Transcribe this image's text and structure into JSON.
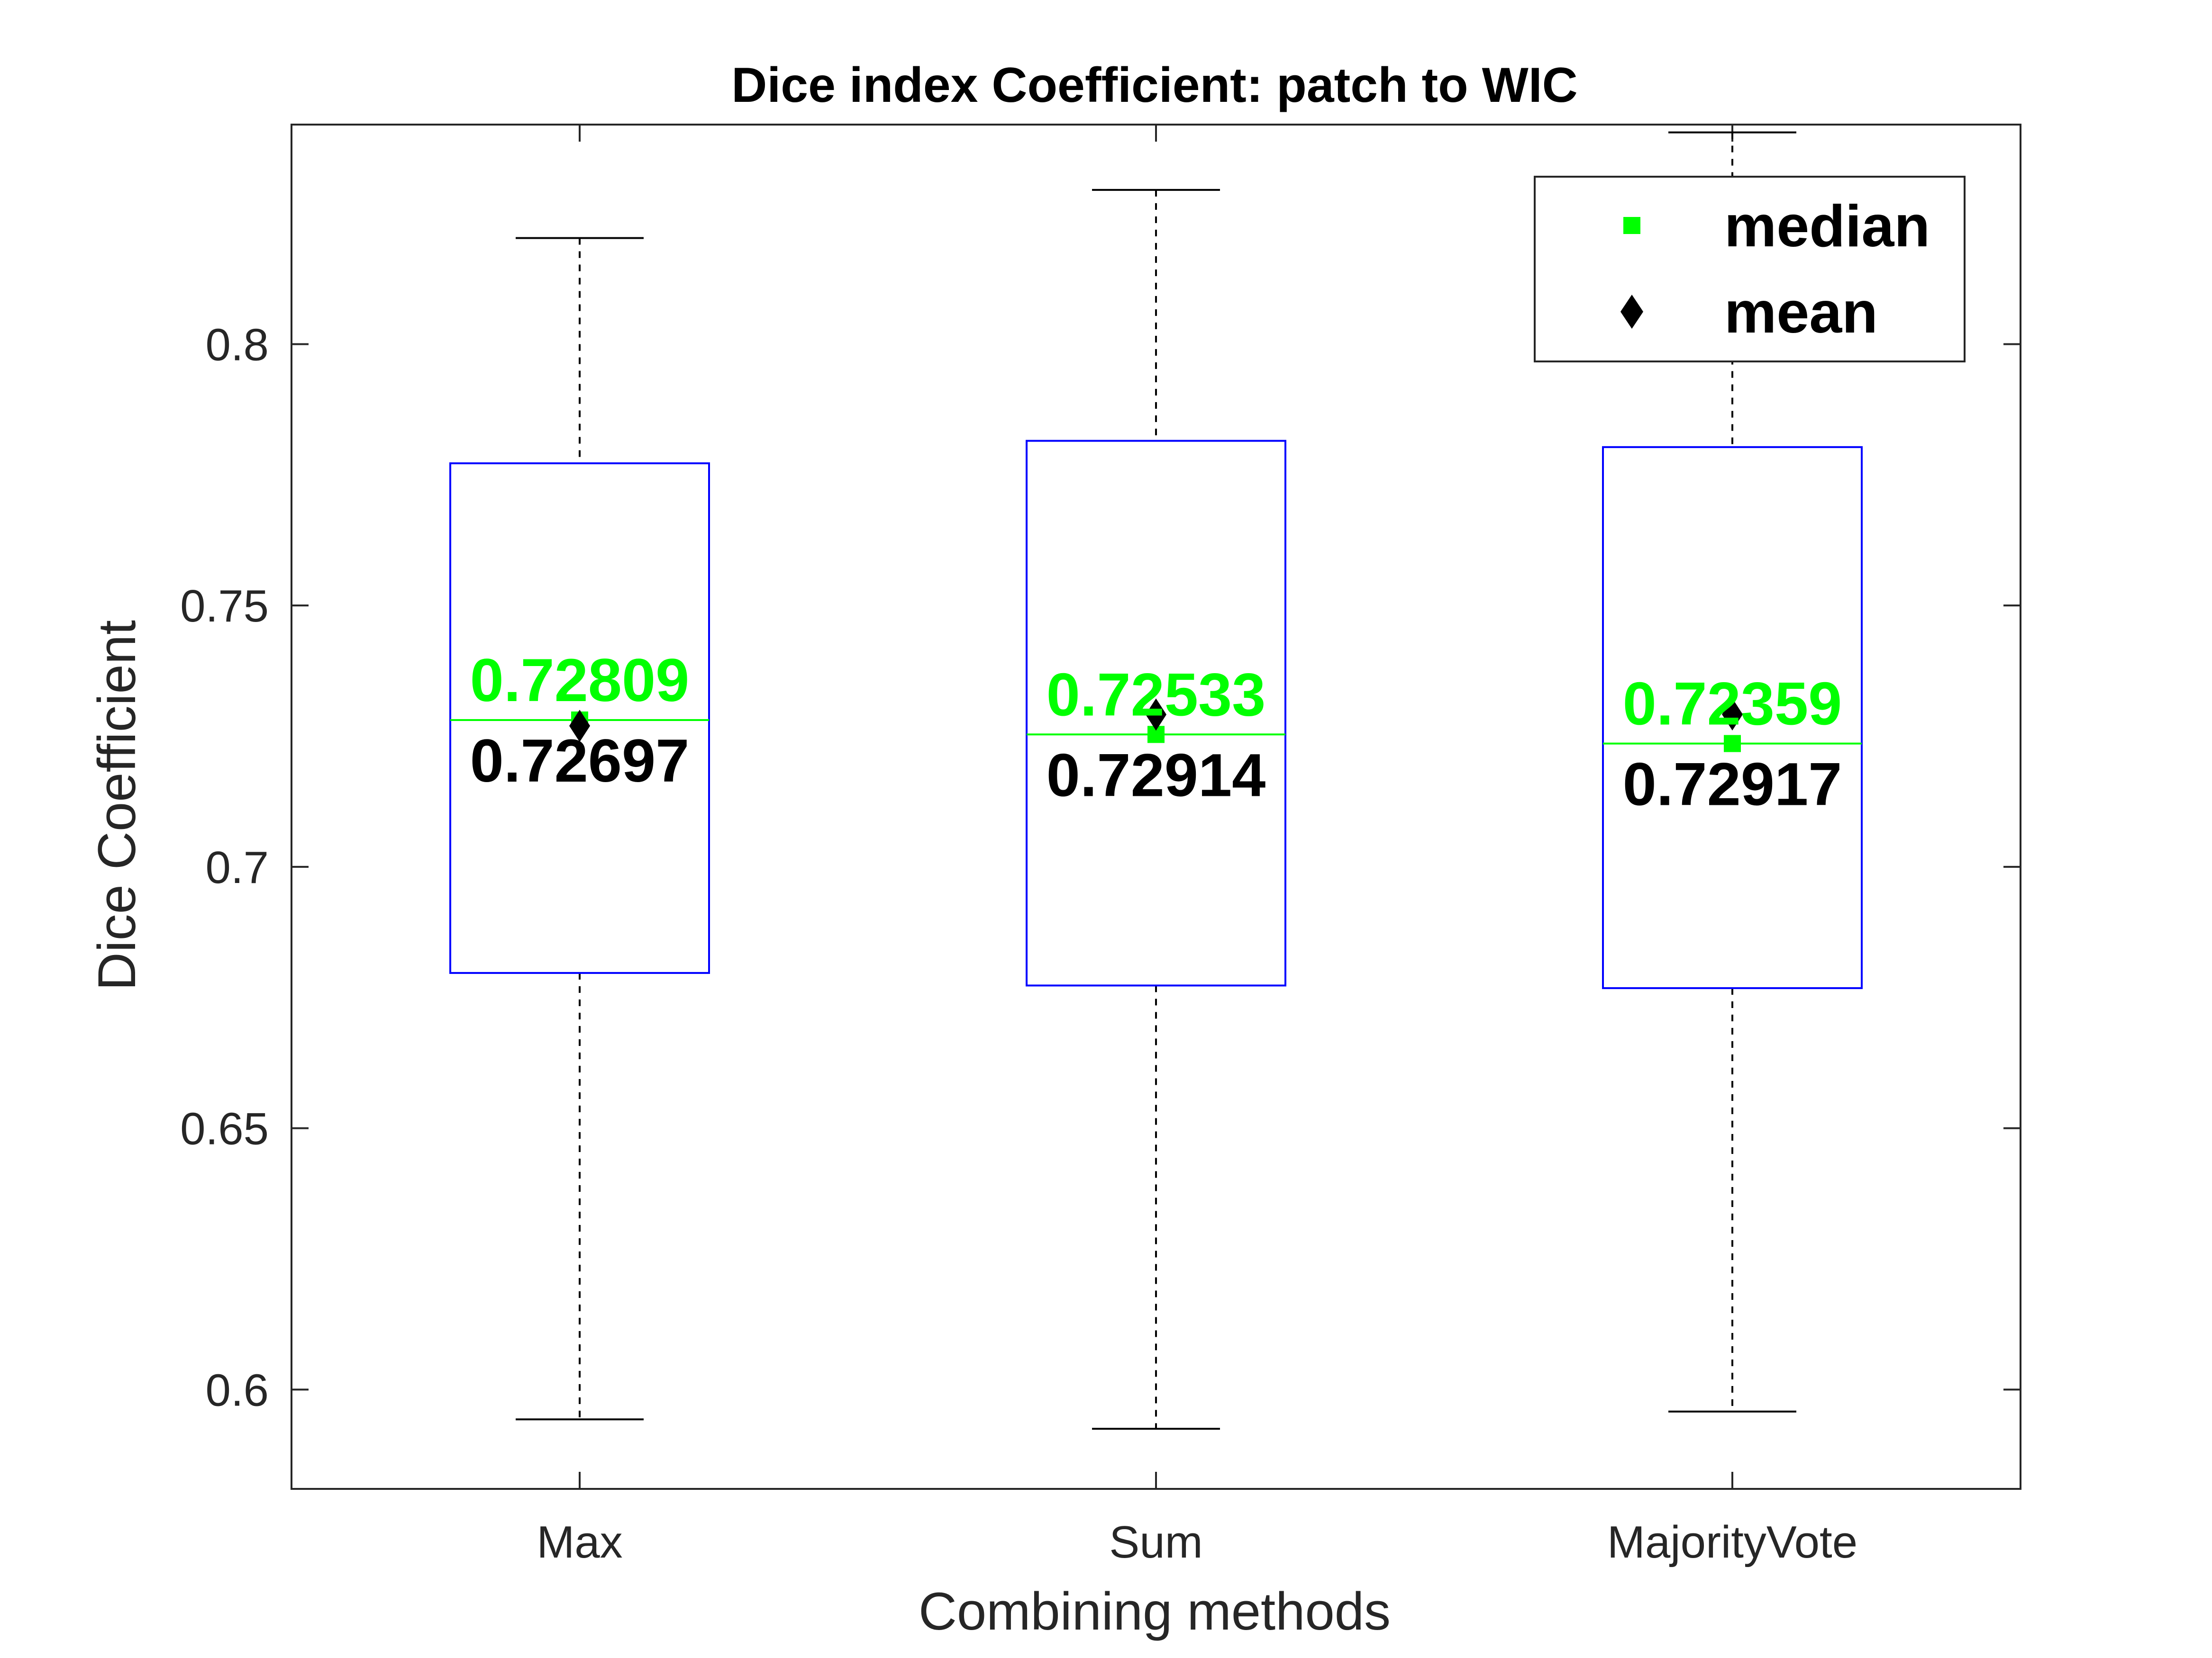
{
  "chart_data": {
    "type": "boxplot",
    "title": "Dice index Coefficient: patch to WIC",
    "xlabel": "Combining methods",
    "ylabel": "Dice Coefficient",
    "categories": [
      "Max",
      "Sum",
      "MajorityVote"
    ],
    "ylim": [
      0.581,
      0.842
    ],
    "yticks": [
      0.6,
      0.65,
      0.7,
      0.75,
      0.8
    ],
    "ytick_labels": [
      "0.6",
      "0.65",
      "0.7",
      "0.75",
      "0.8"
    ],
    "boxes": [
      {
        "category": "Max",
        "whisker_low": 0.5943,
        "q1": 0.6797,
        "median": 0.72809,
        "q3": 0.7772,
        "whisker_high": 0.8203,
        "mean": 0.72697,
        "median_label": "0.72809",
        "mean_label": "0.72697"
      },
      {
        "category": "Sum",
        "whisker_low": 0.5925,
        "q1": 0.6773,
        "median": 0.72533,
        "q3": 0.7815,
        "whisker_high": 0.8295,
        "mean": 0.72914,
        "median_label": "0.72533",
        "mean_label": "0.72914"
      },
      {
        "category": "MajorityVote",
        "whisker_low": 0.5958,
        "q1": 0.6768,
        "median": 0.72359,
        "q3": 0.7803,
        "whisker_high": 0.8405,
        "mean": 0.72917,
        "median_label": "0.72359",
        "mean_label": "0.72917"
      }
    ],
    "legend": {
      "placement": "top-right",
      "entries": [
        {
          "label": "median",
          "marker": "square",
          "color": "#00ff00"
        },
        {
          "label": "mean",
          "marker": "diamond",
          "color": "#000000"
        }
      ]
    },
    "colors": {
      "box": "#0000ff",
      "median": "#00ff00",
      "mean": "#000000",
      "whisker": "#000000",
      "axis": "#262626"
    },
    "grid": false
  }
}
